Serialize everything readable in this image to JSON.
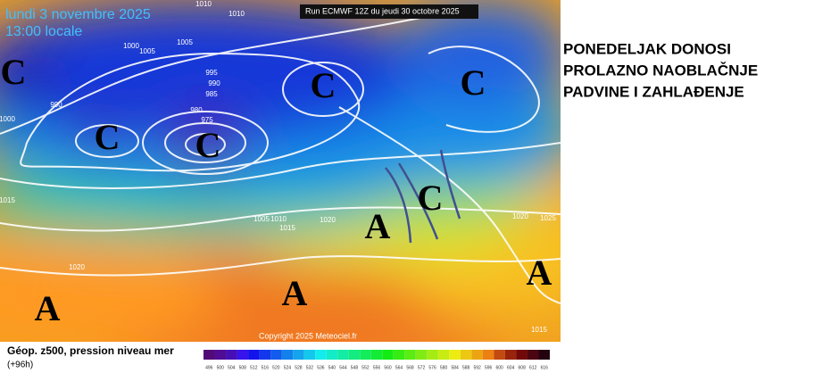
{
  "header": {
    "date": "lundi 3 novembre 2025",
    "time": "13:00 locale",
    "run": "Run ECMWF 12Z du jeudi 30 octobre 2025"
  },
  "headline": [
    "PONEDELJAK DONOSI",
    "PROLAZNO NAOBLAČNJE",
    "PADVINE I ZAHLAĐENJE"
  ],
  "map": {
    "centers": [
      "C",
      "C",
      "C",
      "C",
      "C",
      "C",
      "A",
      "A",
      "A",
      "A"
    ],
    "isobar_labels": [
      "1010",
      "1010",
      "1005",
      "1000",
      "1005",
      "995",
      "990",
      "985",
      "980",
      "975",
      "990",
      "1000",
      "1015",
      "1005",
      "1010",
      "1015",
      "1020",
      "1020",
      "1020",
      "1025",
      "1015"
    ],
    "copyright": "Copyright 2025 Meteociel.fr"
  },
  "legend": {
    "title": "Géop. z500, pression niveau mer",
    "lead": "(+96h)",
    "scale": [
      496,
      500,
      504,
      508,
      512,
      516,
      520,
      524,
      528,
      532,
      536,
      540,
      544,
      548,
      552,
      556,
      560,
      564,
      568,
      572,
      576,
      580,
      584,
      588,
      592,
      596,
      600,
      604,
      608,
      612,
      616
    ]
  }
}
